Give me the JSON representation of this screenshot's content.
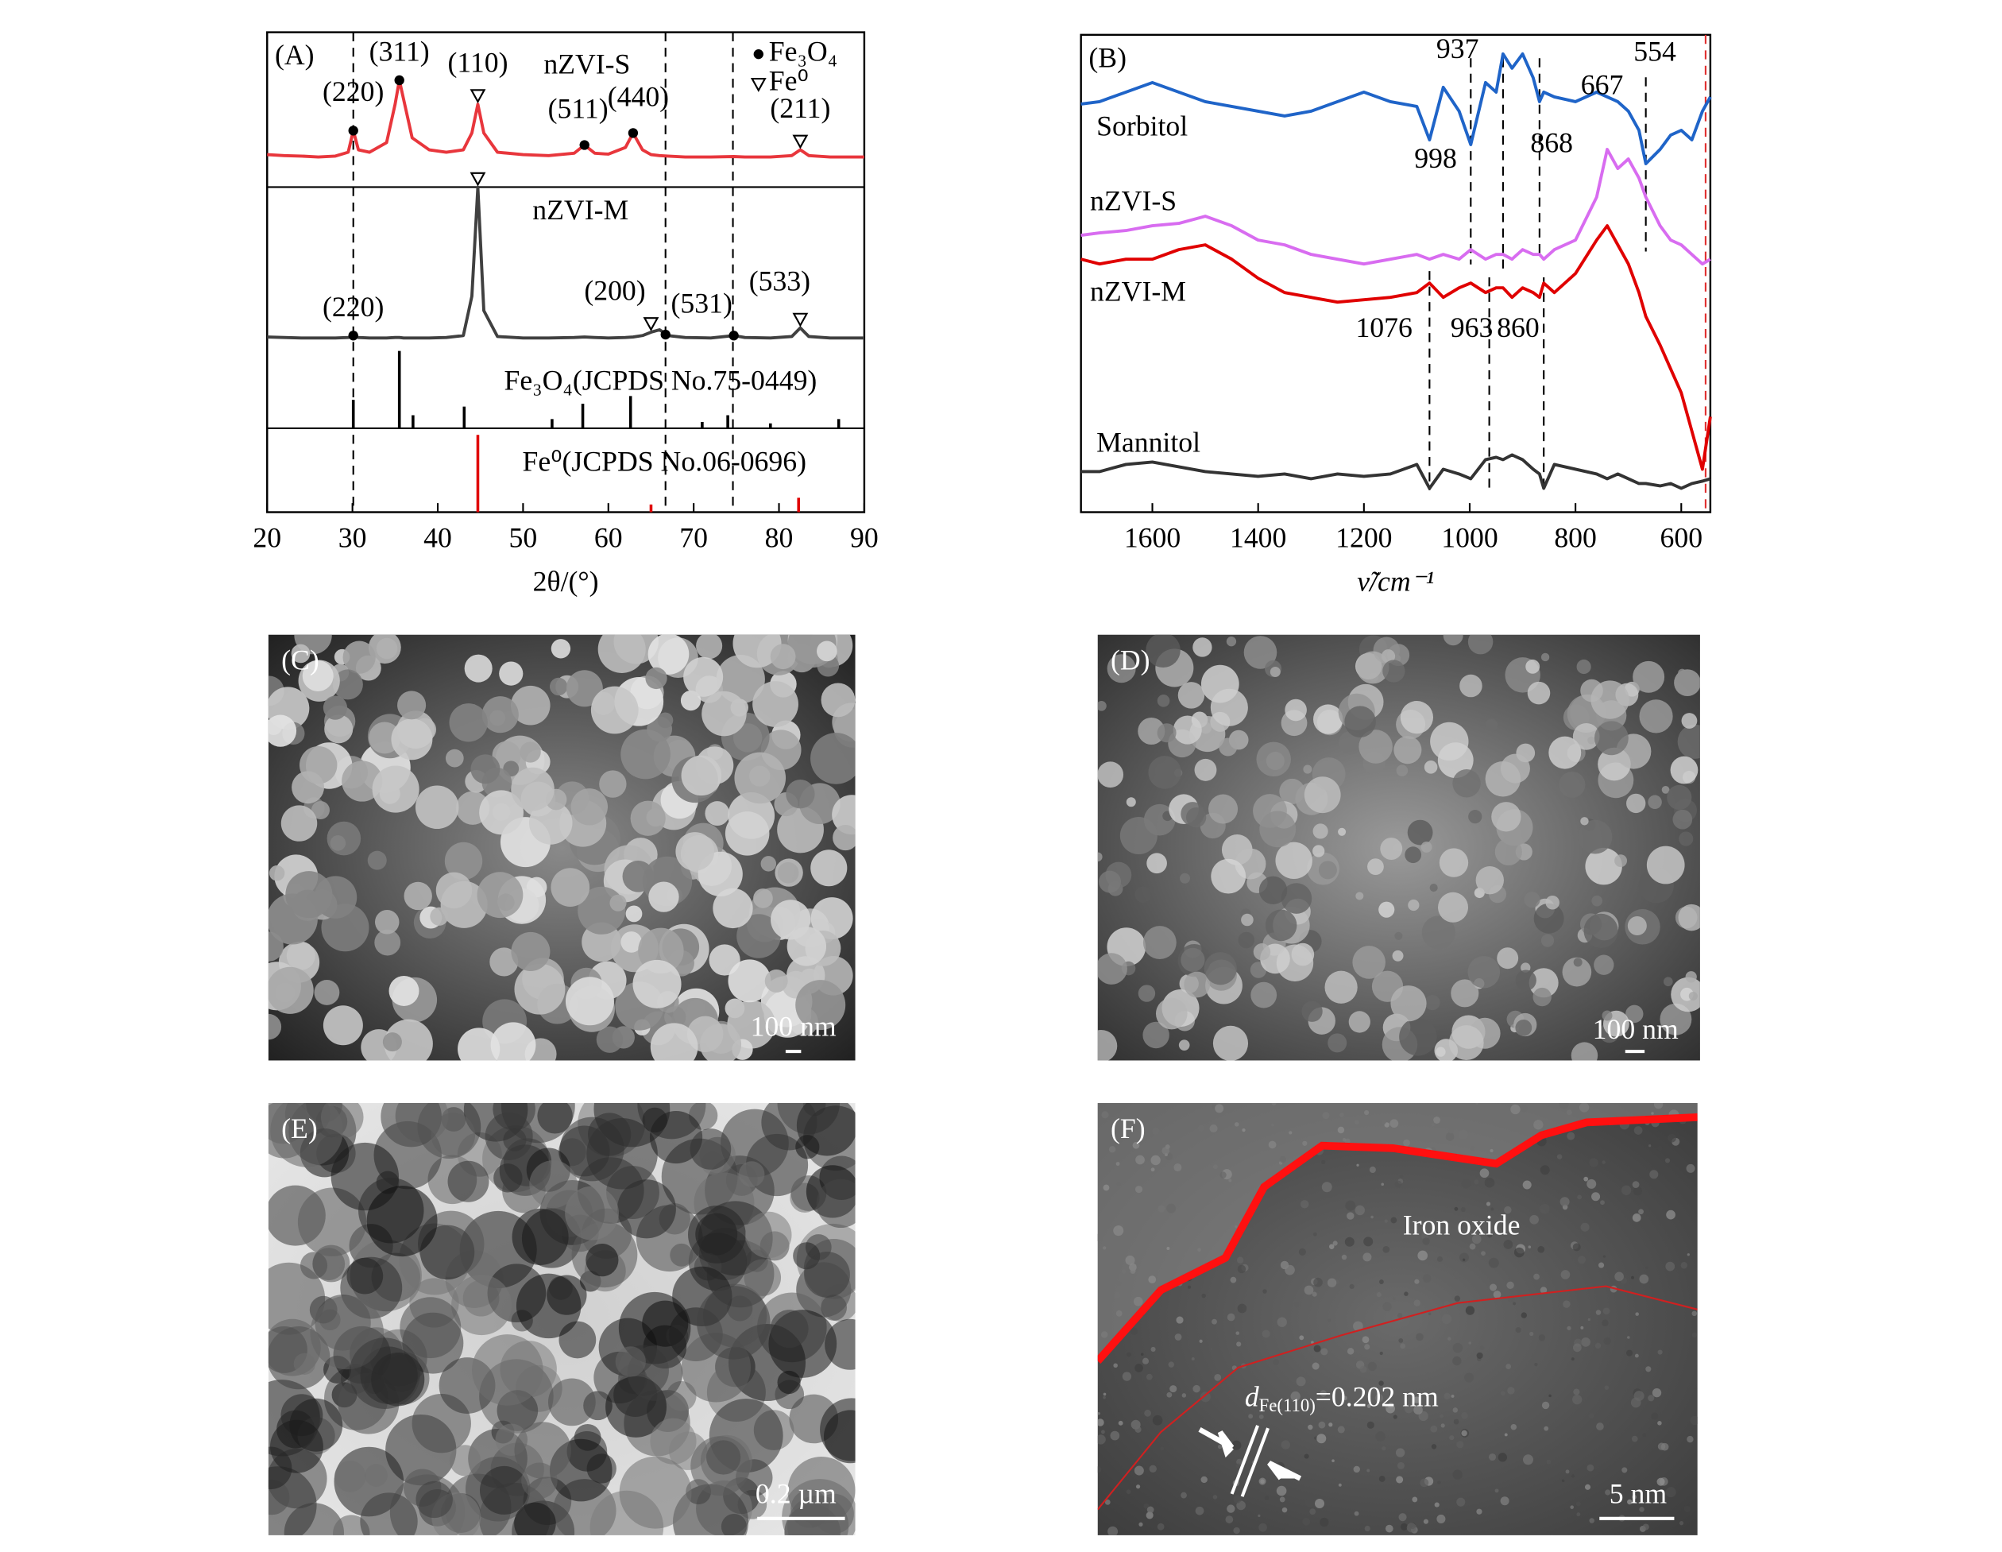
{
  "chart_data": [
    {
      "type": "line",
      "panel_label": "(A)",
      "xlabel": "2θ/(°)",
      "xlim": [
        20,
        90
      ],
      "xticks": [
        20,
        30,
        40,
        50,
        60,
        70,
        80,
        90
      ],
      "ylim": [
        0,
        100
      ],
      "x": [
        20,
        22,
        24,
        26,
        28,
        29.5,
        30.1,
        30.7,
        32,
        34,
        35,
        35.5,
        36,
        37,
        39,
        41,
        43,
        44,
        44.7,
        45.4,
        47,
        50,
        53,
        56,
        57.2,
        58.4,
        60,
        62,
        62.9,
        64,
        65,
        66,
        67,
        69,
        72,
        74.7,
        76,
        79,
        81.5,
        82.5,
        83.5,
        86,
        90
      ],
      "series": [
        {
          "name": "nZVI-S",
          "color": "#e8363c",
          "values": [
            74.5,
            74.3,
            74.2,
            74,
            74.2,
            75,
            79.5,
            75.5,
            75,
            77,
            85,
            90,
            86,
            78,
            75.5,
            75,
            75.5,
            79,
            85,
            79,
            75,
            74.5,
            74.3,
            74.8,
            76.5,
            74.8,
            74.6,
            76,
            79,
            75.5,
            74.5,
            74.3,
            74.2,
            74,
            74,
            74.1,
            74,
            74,
            74.3,
            75.5,
            74.3,
            74,
            74
          ]
        },
        {
          "name": "nZVI-M",
          "color": "#404040",
          "values": [
            36.5,
            36.4,
            36.3,
            36.3,
            36.3,
            36.4,
            36.8,
            36.4,
            36.3,
            36.3,
            36.4,
            36.4,
            36.3,
            36.3,
            36.3,
            36.4,
            36.8,
            45,
            67.7,
            42,
            36.6,
            36.3,
            36.3,
            36.4,
            36.5,
            36.4,
            36.3,
            36.4,
            36.5,
            36.8,
            37.5,
            38,
            36.8,
            36.4,
            36.3,
            36.8,
            36.4,
            36.3,
            36.6,
            38.4,
            36.6,
            36.3,
            36.3
          ]
        }
      ],
      "references": [
        {
          "name": "Fe₃O₄(JCPDS No.75-0449)",
          "color": "#000000",
          "base": 17.5,
          "x": [
            30.1,
            35.5,
            37.1,
            43.1,
            53.4,
            57.0,
            62.6,
            71.0,
            74.0,
            79.0,
            87.0
          ],
          "values": [
            23.4,
            33.6,
            20.2,
            22.0,
            19.4,
            22.6,
            24.2,
            18.8,
            20.2,
            18.5,
            19.4
          ]
        },
        {
          "name": "Fe⁰(JCPDS No.06-0696)",
          "color": "#e00000",
          "base": 0,
          "x": [
            44.7,
            65.0,
            82.3
          ],
          "values": [
            16.1,
            1.6,
            3.0
          ]
        }
      ],
      "peaks": [
        {
          "label": "(220)",
          "x": 30.1,
          "y": 79.5,
          "marker": "dot"
        },
        {
          "label": "(311)",
          "x": 35.5,
          "y": 90,
          "marker": "dot"
        },
        {
          "label": "(110)",
          "x": 44.7,
          "y": 85,
          "marker": "triangle"
        },
        {
          "label": "(511)",
          "x": 57.2,
          "y": 76.5,
          "marker": "dot"
        },
        {
          "label": "(440)",
          "x": 62.9,
          "y": 79,
          "marker": "dot"
        },
        {
          "label": "(211)",
          "x": 82.5,
          "y": 75.5,
          "marker": "triangle"
        },
        {
          "label": "(220)",
          "x": 30.1,
          "y": 36.8,
          "marker": "dot"
        },
        {
          "x": 44.7,
          "y": 67.7,
          "marker": "triangle"
        },
        {
          "label": "(200)",
          "x": 65.0,
          "y": 37.5,
          "marker": "triangle"
        },
        {
          "label": "(531)",
          "x": 66.7,
          "y": 37,
          "marker": "dot"
        },
        {
          "x": 74.7,
          "y": 36.8,
          "marker": "dot"
        },
        {
          "label": "(533)",
          "x": 82.5,
          "y": 38.4,
          "marker": "triangle"
        }
      ],
      "markers_legend": [
        {
          "marker": "dot",
          "label": "Fe₃O₄"
        },
        {
          "marker": "triangle",
          "label": "Fe⁰"
        }
      ],
      "vlines": [
        30.1,
        66.7,
        74.6
      ]
    },
    {
      "type": "line",
      "panel_label": "(B)",
      "xlabel": "ν̃/cm⁻¹",
      "xlim": [
        1735,
        545
      ],
      "xticks": [
        1600,
        1400,
        1200,
        1000,
        800,
        600
      ],
      "ylim": [
        0,
        100
      ],
      "x": [
        1735,
        1700,
        1650,
        1600,
        1550,
        1500,
        1450,
        1400,
        1350,
        1300,
        1250,
        1200,
        1150,
        1100,
        1076,
        1050,
        1020,
        998,
        970,
        950,
        937,
        920,
        900,
        880,
        868,
        860,
        840,
        800,
        760,
        740,
        720,
        700,
        680,
        667,
        640,
        620,
        600,
        580,
        560,
        545
      ],
      "series": [
        {
          "name": "Sorbitol",
          "color": "#1f64c8",
          "values": [
            85.5,
            86,
            88,
            90,
            88,
            86,
            85,
            84,
            83,
            84,
            86,
            88,
            86,
            85,
            78,
            89,
            84,
            77,
            90,
            88,
            96,
            93,
            96,
            91,
            86,
            88,
            87,
            86,
            88,
            87,
            86,
            84,
            80,
            73,
            76,
            79,
            80,
            78,
            84,
            87
          ]
        },
        {
          "name": "nZVI-S",
          "color": "#d86cf0",
          "values": [
            58,
            58.5,
            59,
            60,
            60.5,
            62,
            60,
            57,
            56,
            54,
            53,
            52,
            53,
            54,
            53,
            54,
            53,
            55,
            53,
            54,
            54,
            53,
            55,
            54,
            54,
            53,
            55,
            57,
            66,
            76,
            72,
            74,
            70,
            66,
            60,
            57,
            56,
            54,
            52,
            53
          ]
        },
        {
          "name": "nZVI-M",
          "color": "#e00000",
          "values": [
            53,
            52,
            53,
            53,
            55,
            56,
            53,
            49,
            46,
            45,
            44,
            44.5,
            45,
            46,
            48,
            45,
            47,
            48,
            46,
            47,
            47,
            45,
            47,
            46,
            45,
            48,
            46,
            50,
            57,
            60,
            56,
            52,
            46,
            41,
            35,
            30,
            25,
            17,
            9,
            20
          ]
        },
        {
          "name": "Mannitol",
          "color": "#333333",
          "values": [
            8.5,
            8.5,
            10,
            10.5,
            9.5,
            8.5,
            8,
            7.5,
            8,
            7,
            8,
            7.5,
            8,
            10,
            5,
            9,
            8,
            7,
            11,
            11.5,
            11,
            12,
            11,
            9,
            8,
            5,
            10,
            9,
            8,
            7,
            8,
            7,
            6,
            6,
            5.5,
            6,
            5,
            6,
            6.5,
            7
          ]
        }
      ],
      "vlines": [
        {
          "value": 998,
          "ymin": 51.9,
          "ymax": 95.1,
          "color": "#000000"
        },
        {
          "value": 937,
          "ymin": 50.5,
          "ymax": 95.1,
          "color": "#000000"
        },
        {
          "value": 868,
          "ymin": 53.2,
          "ymax": 95.1,
          "color": "#000000"
        },
        {
          "value": 667,
          "ymin": 54.6,
          "ymax": 91.1,
          "color": "#000000"
        },
        {
          "value": 554,
          "ymin": 0,
          "ymax": 100,
          "color": "#e03030"
        },
        {
          "value": 1076,
          "ymin": 4.6,
          "ymax": 50.5,
          "color": "#000000"
        },
        {
          "value": 963,
          "ymin": 4.6,
          "ymax": 49.2,
          "color": "#000000"
        },
        {
          "value": 860,
          "ymin": 4.6,
          "ymax": 49.2,
          "color": "#000000"
        }
      ]
    }
  ],
  "panels": [
    {
      "label": "(C)",
      "scale": "100 nm"
    },
    {
      "label": "(D)",
      "scale": "100 nm"
    },
    {
      "label": "(E)",
      "scale": "0.2 µm"
    },
    {
      "label": "(F)",
      "scale": "5 nm",
      "annotation": "Iron oxide",
      "spacing": {
        "symbol": "d",
        "subscript": "Fe(110)",
        "value": "=0.202 nm"
      }
    }
  ]
}
